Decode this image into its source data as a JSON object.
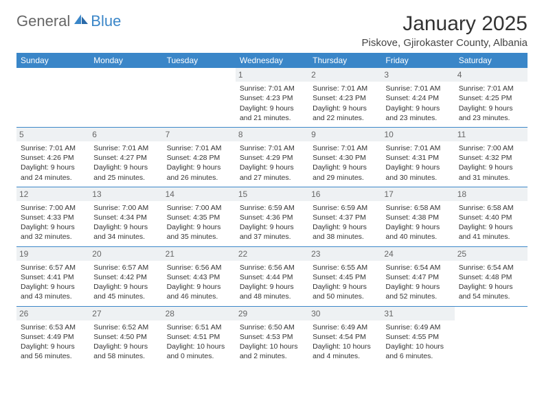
{
  "logo": {
    "general": "General",
    "blue": "Blue"
  },
  "title": "January 2025",
  "location": "Piskove, Gjirokaster County, Albania",
  "colors": {
    "header_bg": "#3a86c8",
    "header_text": "#ffffff",
    "daynum_bg": "#eef1f3",
    "daynum_text": "#666666",
    "cell_border": "#3a86c8",
    "body_text": "#333333"
  },
  "dow": [
    "Sunday",
    "Monday",
    "Tuesday",
    "Wednesday",
    "Thursday",
    "Friday",
    "Saturday"
  ],
  "weeks": [
    [
      null,
      null,
      null,
      {
        "n": "1",
        "sr": "7:01 AM",
        "ss": "4:23 PM",
        "dl": "9 hours and 21 minutes."
      },
      {
        "n": "2",
        "sr": "7:01 AM",
        "ss": "4:23 PM",
        "dl": "9 hours and 22 minutes."
      },
      {
        "n": "3",
        "sr": "7:01 AM",
        "ss": "4:24 PM",
        "dl": "9 hours and 23 minutes."
      },
      {
        "n": "4",
        "sr": "7:01 AM",
        "ss": "4:25 PM",
        "dl": "9 hours and 23 minutes."
      }
    ],
    [
      {
        "n": "5",
        "sr": "7:01 AM",
        "ss": "4:26 PM",
        "dl": "9 hours and 24 minutes."
      },
      {
        "n": "6",
        "sr": "7:01 AM",
        "ss": "4:27 PM",
        "dl": "9 hours and 25 minutes."
      },
      {
        "n": "7",
        "sr": "7:01 AM",
        "ss": "4:28 PM",
        "dl": "9 hours and 26 minutes."
      },
      {
        "n": "8",
        "sr": "7:01 AM",
        "ss": "4:29 PM",
        "dl": "9 hours and 27 minutes."
      },
      {
        "n": "9",
        "sr": "7:01 AM",
        "ss": "4:30 PM",
        "dl": "9 hours and 29 minutes."
      },
      {
        "n": "10",
        "sr": "7:01 AM",
        "ss": "4:31 PM",
        "dl": "9 hours and 30 minutes."
      },
      {
        "n": "11",
        "sr": "7:00 AM",
        "ss": "4:32 PM",
        "dl": "9 hours and 31 minutes."
      }
    ],
    [
      {
        "n": "12",
        "sr": "7:00 AM",
        "ss": "4:33 PM",
        "dl": "9 hours and 32 minutes."
      },
      {
        "n": "13",
        "sr": "7:00 AM",
        "ss": "4:34 PM",
        "dl": "9 hours and 34 minutes."
      },
      {
        "n": "14",
        "sr": "7:00 AM",
        "ss": "4:35 PM",
        "dl": "9 hours and 35 minutes."
      },
      {
        "n": "15",
        "sr": "6:59 AM",
        "ss": "4:36 PM",
        "dl": "9 hours and 37 minutes."
      },
      {
        "n": "16",
        "sr": "6:59 AM",
        "ss": "4:37 PM",
        "dl": "9 hours and 38 minutes."
      },
      {
        "n": "17",
        "sr": "6:58 AM",
        "ss": "4:38 PM",
        "dl": "9 hours and 40 minutes."
      },
      {
        "n": "18",
        "sr": "6:58 AM",
        "ss": "4:40 PM",
        "dl": "9 hours and 41 minutes."
      }
    ],
    [
      {
        "n": "19",
        "sr": "6:57 AM",
        "ss": "4:41 PM",
        "dl": "9 hours and 43 minutes."
      },
      {
        "n": "20",
        "sr": "6:57 AM",
        "ss": "4:42 PM",
        "dl": "9 hours and 45 minutes."
      },
      {
        "n": "21",
        "sr": "6:56 AM",
        "ss": "4:43 PM",
        "dl": "9 hours and 46 minutes."
      },
      {
        "n": "22",
        "sr": "6:56 AM",
        "ss": "4:44 PM",
        "dl": "9 hours and 48 minutes."
      },
      {
        "n": "23",
        "sr": "6:55 AM",
        "ss": "4:45 PM",
        "dl": "9 hours and 50 minutes."
      },
      {
        "n": "24",
        "sr": "6:54 AM",
        "ss": "4:47 PM",
        "dl": "9 hours and 52 minutes."
      },
      {
        "n": "25",
        "sr": "6:54 AM",
        "ss": "4:48 PM",
        "dl": "9 hours and 54 minutes."
      }
    ],
    [
      {
        "n": "26",
        "sr": "6:53 AM",
        "ss": "4:49 PM",
        "dl": "9 hours and 56 minutes."
      },
      {
        "n": "27",
        "sr": "6:52 AM",
        "ss": "4:50 PM",
        "dl": "9 hours and 58 minutes."
      },
      {
        "n": "28",
        "sr": "6:51 AM",
        "ss": "4:51 PM",
        "dl": "10 hours and 0 minutes."
      },
      {
        "n": "29",
        "sr": "6:50 AM",
        "ss": "4:53 PM",
        "dl": "10 hours and 2 minutes."
      },
      {
        "n": "30",
        "sr": "6:49 AM",
        "ss": "4:54 PM",
        "dl": "10 hours and 4 minutes."
      },
      {
        "n": "31",
        "sr": "6:49 AM",
        "ss": "4:55 PM",
        "dl": "10 hours and 6 minutes."
      },
      null
    ]
  ],
  "labels": {
    "sunrise": "Sunrise:",
    "sunset": "Sunset:",
    "daylight": "Daylight:"
  }
}
